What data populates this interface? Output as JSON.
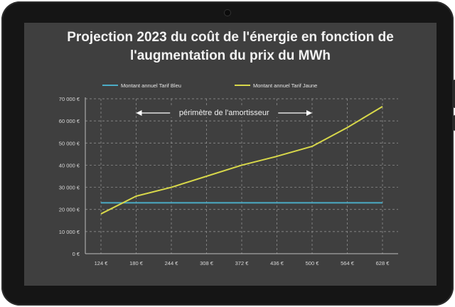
{
  "chart_data": {
    "type": "line",
    "title_line1": "Projection 2023 du coût de l'énergie en fonction de",
    "title_line2": "l'augmentation du prix du MWh",
    "categories": [
      "124 €",
      "180 €",
      "244 €",
      "308 €",
      "372 €",
      "436 €",
      "500 €",
      "564 €",
      "628 €"
    ],
    "y_ticks": [
      "0 €",
      "10 000 €",
      "20 000 €",
      "30 000 €",
      "40 000 €",
      "50 000 €",
      "60 000 €",
      "70 000 €"
    ],
    "ylim": [
      0,
      70000
    ],
    "grid": true,
    "legend_position": "top",
    "series": [
      {
        "name": "Montant annuel Tarif Bleu",
        "color": "#4bacc6",
        "values": [
          23000,
          23000,
          23000,
          23000,
          23000,
          23000,
          23000,
          23000,
          23000
        ]
      },
      {
        "name": "Montant annuel Tarif Jaune",
        "color": "#d8d84a",
        "values": [
          18000,
          26000,
          30000,
          35000,
          40000,
          44000,
          48500,
          57000,
          66500
        ]
      }
    ],
    "annotation": {
      "text": "périmètre de l'amortisseur",
      "from": "180 €",
      "to": "500 €"
    }
  }
}
